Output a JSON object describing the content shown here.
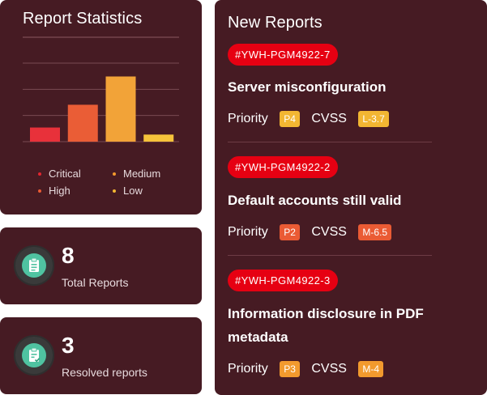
{
  "stats": {
    "title": "Report Statistics",
    "chart_data": {
      "type": "bar",
      "categories": [
        "Critical",
        "High",
        "Medium",
        "Low"
      ],
      "values": [
        18,
        47,
        83,
        9
      ],
      "colors": [
        "#e8313a",
        "#ea5d36",
        "#f2a338",
        "#f5c33b"
      ],
      "ylim": [
        0,
        100
      ],
      "grid": true,
      "legend_position": "bottom"
    },
    "legend": [
      {
        "label": "Critical",
        "color": "#e4262f"
      },
      {
        "label": "Medium",
        "color": "#f29a2e"
      },
      {
        "label": "High",
        "color": "#ea5b34"
      },
      {
        "label": "Low",
        "color": "#f2b632"
      }
    ]
  },
  "total": {
    "number": "8",
    "label": "Total Reports",
    "icon": "clipboard-icon"
  },
  "resolved": {
    "number": "3",
    "label": "Resolved reports",
    "icon": "clipboard-check-icon"
  },
  "reports": {
    "title": "New Reports",
    "items": [
      {
        "id": "#YWH-PGM4922-7",
        "title": "Server misconfiguration",
        "priority_label": "Priority",
        "priority": "P4",
        "priority_color": "#f2b632",
        "cvss_label": "CVSS",
        "cvss": "L-3.7",
        "cvss_color": "#f2b632"
      },
      {
        "id": "#YWH-PGM4922-2",
        "title": "Default accounts still valid",
        "priority_label": "Priority",
        "priority": "P2",
        "priority_color": "#ea5b34",
        "cvss_label": "CVSS",
        "cvss": "M-6.5",
        "cvss_color": "#ea5b34"
      },
      {
        "id": "#YWH-PGM4922-3",
        "title": "Information disclosure in PDF metadata",
        "priority_label": "Priority",
        "priority": "P3",
        "priority_color": "#f29a2e",
        "cvss_label": "CVSS",
        "cvss": "M-4",
        "cvss_color": "#f29a2e"
      }
    ]
  }
}
